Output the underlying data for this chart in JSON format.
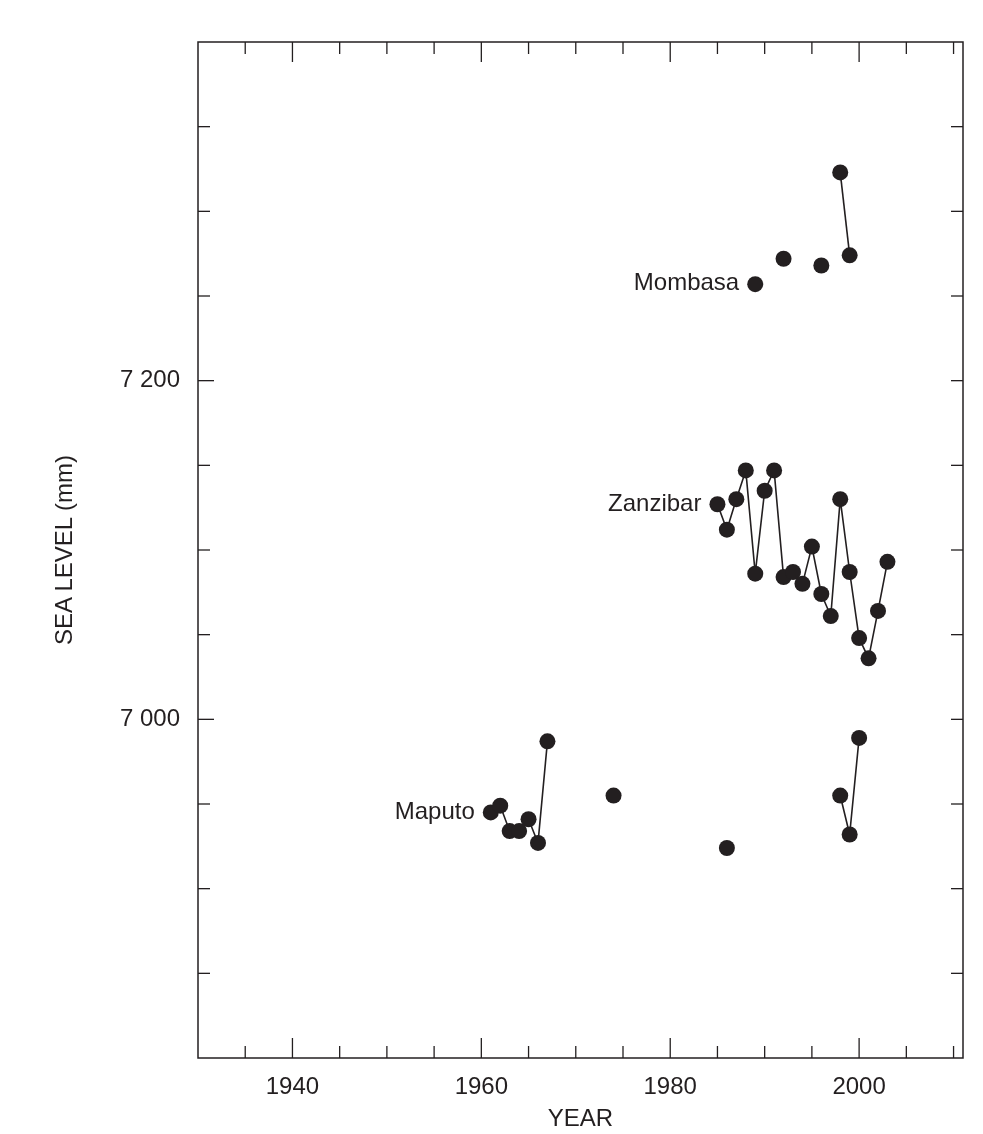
{
  "chart_data": {
    "type": "line",
    "xlabel": "YEAR",
    "ylabel": "SEA LEVEL (mm)",
    "xlim": [
      1930,
      2011
    ],
    "xticks": [
      {
        "value": 1935,
        "label": null
      },
      1940,
      {
        "value": 1945,
        "label": null
      },
      {
        "value": 1950,
        "label": null
      },
      {
        "value": 1955,
        "label": null
      },
      1960,
      {
        "value": 1965,
        "label": null
      },
      {
        "value": 1970,
        "label": null
      },
      {
        "value": 1975,
        "label": null
      },
      1980,
      {
        "value": 1985,
        "label": null
      },
      {
        "value": 1990,
        "label": null
      },
      {
        "value": 1995,
        "label": null
      },
      2000,
      {
        "value": 2005,
        "label": null
      },
      {
        "value": 2010,
        "label": null
      }
    ],
    "ylim": [
      6800,
      7400
    ],
    "yticks": [
      {
        "value": 6850,
        "label": null
      },
      {
        "value": 6900,
        "label": null
      },
      {
        "value": 6950,
        "label": null
      },
      {
        "value": 7000,
        "label": "7 000"
      },
      {
        "value": 7050,
        "label": null
      },
      {
        "value": 7100,
        "label": null
      },
      {
        "value": 7150,
        "label": null
      },
      {
        "value": 7200,
        "label": "7 200"
      },
      {
        "value": 7250,
        "label": null
      },
      {
        "value": 7300,
        "label": null
      },
      {
        "value": 7350,
        "label": null
      }
    ],
    "marker": "circle",
    "line_style": "solid",
    "series": [
      {
        "name": "Mombasa",
        "color": "#231f20",
        "x": [
          1989,
          1990,
          1992,
          1993,
          1996,
          1997,
          1998,
          1999
        ],
        "values": [
          7257,
          null,
          7272,
          null,
          7268,
          null,
          7323,
          7274
        ]
      },
      {
        "name": "Zanzibar",
        "color": "#231f20",
        "x": [
          1985,
          1986,
          1987,
          1988,
          1989,
          1990,
          1991,
          1992,
          1993,
          1994,
          1995,
          1996,
          1997,
          1998,
          1999,
          2000,
          2001,
          2002,
          2003
        ],
        "values": [
          7127,
          7112,
          7130,
          7147,
          7086,
          7135,
          7147,
          7084,
          7087,
          7080,
          7102,
          7074,
          7061,
          7130,
          7087,
          7048,
          7036,
          7064,
          7093
        ]
      },
      {
        "name": "Maputo",
        "color": "#231f20",
        "x": [
          1961,
          1962,
          1963,
          1964,
          1965,
          1966,
          1967,
          1968,
          1974,
          1975,
          1986,
          1987,
          1998,
          1999,
          2000
        ],
        "values": [
          6945,
          6949,
          6934,
          6934,
          6941,
          6927,
          6987,
          null,
          6955,
          null,
          6924,
          null,
          6955,
          6932,
          6989
        ]
      }
    ]
  }
}
